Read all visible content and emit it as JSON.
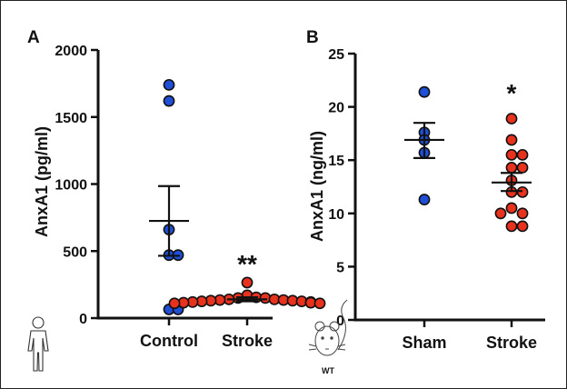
{
  "figure_border_color": "#222222",
  "colors": {
    "control_marker": "#1f4fd6",
    "stroke_marker": "#e8321e",
    "marker_edge": "#111111",
    "axis": "#111111"
  },
  "icons": {
    "panel_a": "human-outline-icon",
    "panel_b": "mouse-icon"
  },
  "wt_label": "WT",
  "chart_data": [
    {
      "panel": "A",
      "type": "scatter",
      "title": "",
      "xlabel": "",
      "ylabel": "AnxA1 (pg/ml)",
      "ylim": [
        0,
        2000
      ],
      "yticks": [
        0,
        500,
        1000,
        1500,
        2000
      ],
      "categories": [
        "Control",
        "Stroke"
      ],
      "series": [
        {
          "category": "Control",
          "color": "#1f4fd6",
          "values": [
            1740,
            1620,
            660,
            470,
            470,
            65,
            65
          ],
          "mean": 725,
          "sem_low": 465,
          "sem_high": 985
        },
        {
          "category": "Stroke",
          "color": "#e8321e",
          "values": [
            265,
            170,
            155,
            150,
            150,
            140,
            140,
            135,
            135,
            130,
            130,
            125,
            125,
            120,
            120,
            115,
            115,
            110,
            110
          ],
          "mean": 140,
          "sem_low": 125,
          "sem_high": 155
        }
      ],
      "annotations": [
        {
          "category": "Stroke",
          "text": "**",
          "y": 420
        }
      ]
    },
    {
      "panel": "B",
      "type": "scatter",
      "title": "",
      "xlabel": "",
      "ylabel": "AnxA1 (ng/ml)",
      "ylim": [
        0,
        25
      ],
      "yticks": [
        0,
        5,
        10,
        15,
        20,
        25
      ],
      "categories": [
        "Sham",
        "Stroke"
      ],
      "series": [
        {
          "category": "Sham",
          "color": "#1f4fd6",
          "values": [
            21.4,
            17.6,
            16.9,
            15.7,
            11.3
          ],
          "mean": 16.9,
          "sem_low": 15.2,
          "sem_high": 18.5
        },
        {
          "category": "Stroke",
          "color": "#e8321e",
          "values": [
            18.9,
            16.9,
            15.5,
            15.5,
            14.3,
            14.3,
            13.1,
            12.0,
            12.0,
            10.5,
            10.0,
            10.0,
            8.8,
            8.8
          ],
          "mean": 12.9,
          "sem_low": 12.1,
          "sem_high": 13.8
        }
      ],
      "annotations": [
        {
          "category": "Stroke",
          "text": "*",
          "y": 21.5
        }
      ]
    }
  ]
}
